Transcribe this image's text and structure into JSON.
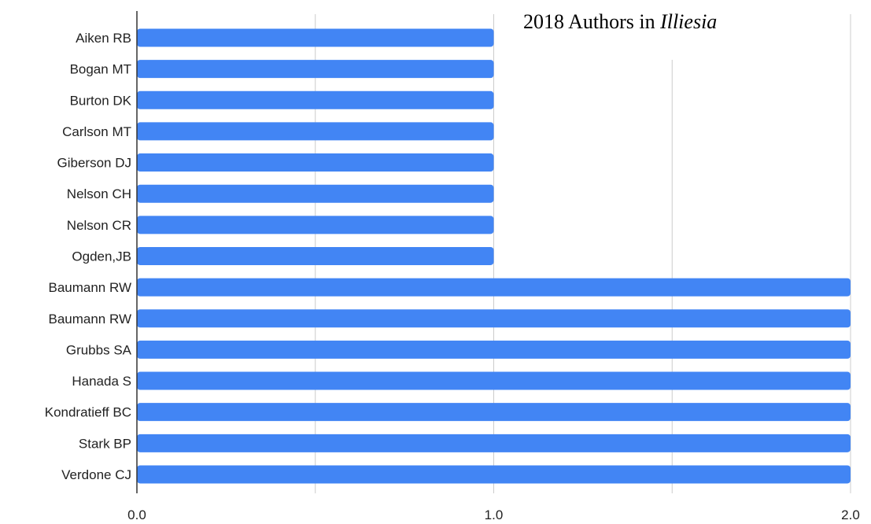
{
  "chart_data": {
    "type": "bar",
    "orientation": "horizontal",
    "title": {
      "prefix": "2018 Authors in ",
      "italic": "Illiesia"
    },
    "categories": [
      "Aiken RB",
      "Bogan MT",
      "Burton DK",
      "Carlson MT",
      "Giberson DJ",
      "Nelson CH",
      "Nelson CR",
      "Ogden,JB",
      "Baumann RW",
      "Baumann RW",
      "Grubbs SA",
      "Hanada S",
      "Kondratieff BC",
      "Stark BP",
      "Verdone CJ"
    ],
    "values": [
      1,
      1,
      1,
      1,
      1,
      1,
      1,
      1,
      2,
      2,
      2,
      2,
      2,
      2,
      2
    ],
    "xlim": [
      0,
      2
    ],
    "xticks": [
      "0.0",
      "1.0",
      "2.0"
    ],
    "grid": true,
    "bar_color": "#4285f4",
    "grid_color": "#cccccc",
    "axis_color": "#333333",
    "xlabel": "",
    "ylabel": ""
  }
}
